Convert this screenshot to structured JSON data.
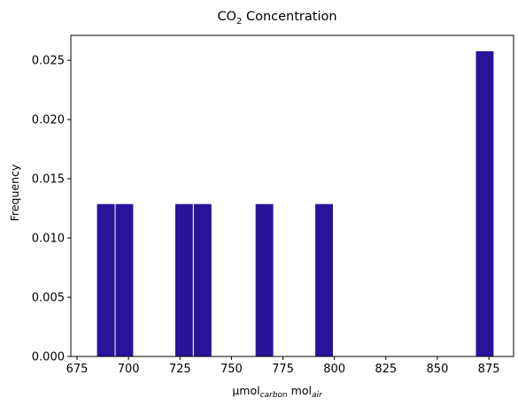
{
  "chart_data": {
    "type": "bar",
    "title": "CO",
    "title_sub": "2",
    "title_rest": " Concentration",
    "xlabel_main": "μmol",
    "xlabel_sub1": "carbon",
    "xlabel_mid": " mol",
    "xlabel_sub2": "air",
    "ylabel": "Frequency",
    "xlim": [
      672,
      887
    ],
    "ylim": [
      0,
      0.0271
    ],
    "xticks": [
      675,
      700,
      725,
      750,
      775,
      800,
      825,
      850,
      875
    ],
    "xtick_labels": [
      "675",
      "700",
      "725",
      "750",
      "775",
      "800",
      "825",
      "850",
      "875"
    ],
    "yticks": [
      0,
      0.005,
      0.01,
      0.015,
      0.02,
      0.025
    ],
    "ytick_labels": [
      "0.000",
      "0.005",
      "0.010",
      "0.015",
      "0.020",
      "0.025"
    ],
    "bars": [
      {
        "x0": 684.5,
        "x1": 693.5,
        "value": 0.0129
      },
      {
        "x0": 693.5,
        "x1": 702.5,
        "value": 0.0129
      },
      {
        "x0": 722.5,
        "x1": 731.5,
        "value": 0.0129
      },
      {
        "x0": 731.5,
        "x1": 740.5,
        "value": 0.0129
      },
      {
        "x0": 761.5,
        "x1": 770.5,
        "value": 0.0129
      },
      {
        "x0": 790.5,
        "x1": 799.5,
        "value": 0.0129
      },
      {
        "x0": 868.5,
        "x1": 877.5,
        "value": 0.0258
      }
    ],
    "bar_color": "#2a139b",
    "edge_color": "#ffffff",
    "grid": false,
    "legend": "none"
  }
}
